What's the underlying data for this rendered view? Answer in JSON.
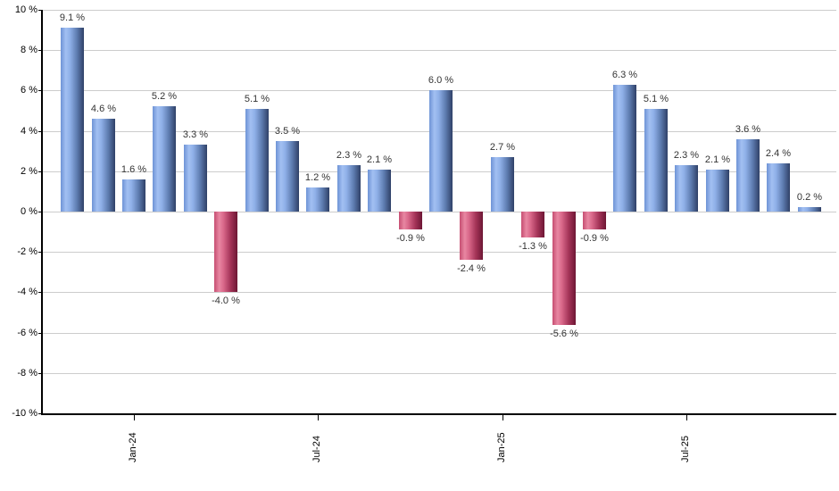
{
  "chart_data": {
    "type": "bar",
    "title": "",
    "xlabel": "",
    "ylabel": "",
    "ylim": [
      -10,
      10
    ],
    "y_tick_step": 2,
    "grid": true,
    "legend_position": "none",
    "y_tick_labels": [
      "10 %",
      "8 %",
      "6 %",
      "4 %",
      "2 %",
      "0 %",
      "-2 %",
      "-4 %",
      "-6 %",
      "-8 %",
      "-10 %"
    ],
    "y_tick_values": [
      10,
      8,
      6,
      4,
      2,
      0,
      -2,
      -4,
      -6,
      -8,
      -10
    ],
    "x_tick_labels": [
      "Jan-24",
      "Jul-24",
      "Jan-25",
      "Jul-25"
    ],
    "x_tick_bar_indices": [
      2,
      8,
      14,
      20
    ],
    "bars": [
      {
        "value": 9.1,
        "label": "9.1 %"
      },
      {
        "value": 4.6,
        "label": "4.6 %"
      },
      {
        "value": 1.6,
        "label": "1.6 %"
      },
      {
        "value": 5.2,
        "label": "5.2 %"
      },
      {
        "value": 3.3,
        "label": "3.3 %"
      },
      {
        "value": -4.0,
        "label": "-4.0 %"
      },
      {
        "value": 5.1,
        "label": "5.1 %"
      },
      {
        "value": 3.5,
        "label": "3.5 %"
      },
      {
        "value": 1.2,
        "label": "1.2 %"
      },
      {
        "value": 2.3,
        "label": "2.3 %"
      },
      {
        "value": 2.1,
        "label": "2.1 %"
      },
      {
        "value": -0.9,
        "label": "-0.9 %"
      },
      {
        "value": 6.0,
        "label": "6.0 %"
      },
      {
        "value": -2.4,
        "label": "-2.4 %"
      },
      {
        "value": 2.7,
        "label": "2.7 %"
      },
      {
        "value": -1.3,
        "label": "-1.3 %"
      },
      {
        "value": -5.6,
        "label": "-5.6 %"
      },
      {
        "value": -0.9,
        "label": "-0.9 %"
      },
      {
        "value": 6.3,
        "label": "6.3 %"
      },
      {
        "value": 5.1,
        "label": "5.1 %"
      },
      {
        "value": 2.3,
        "label": "2.3 %"
      },
      {
        "value": 2.1,
        "label": "2.1 %"
      },
      {
        "value": 3.6,
        "label": "3.6 %"
      },
      {
        "value": 2.4,
        "label": "2.4 %"
      },
      {
        "value": 0.2,
        "label": "0.2 %"
      }
    ],
    "colors": {
      "positive_gradient": [
        "#6e93d6",
        "#a2c0f2",
        "#8fb0e8",
        "#5e7cb0",
        "#2f4067"
      ],
      "negative_gradient": [
        "#c64e72",
        "#e887a2",
        "#d9688a",
        "#a43458",
        "#6d1634"
      ],
      "grid": "#cccccc",
      "axis": "#000000",
      "bar_label_text": "#333333",
      "tick_text": "#000000",
      "background": "#ffffff"
    }
  }
}
